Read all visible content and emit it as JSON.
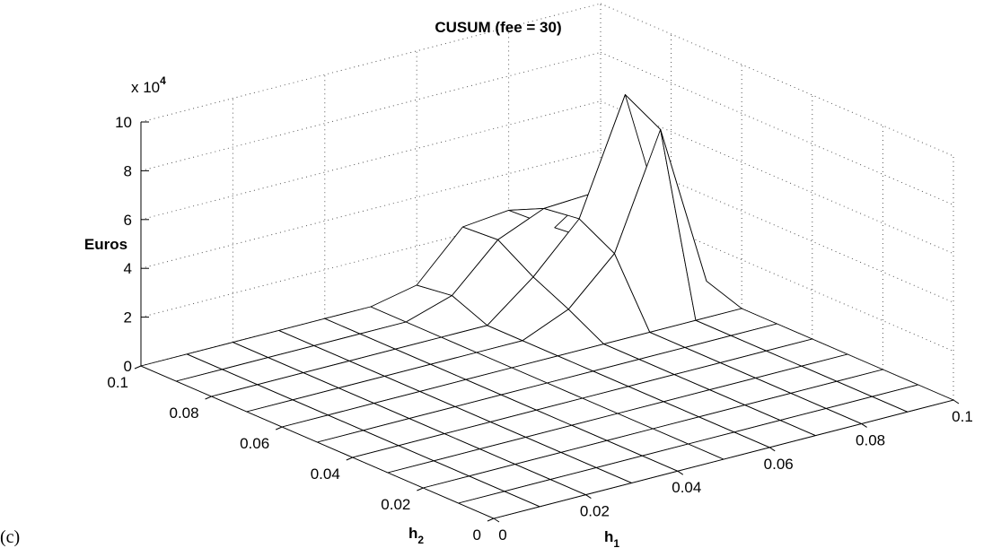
{
  "panel_label": "(c)",
  "chart_data": {
    "type": "surface",
    "title": "CUSUM (fee = 30)",
    "xlabel": "h",
    "xlabel_sub": "1",
    "ylabel": "h",
    "ylabel_sub": "2",
    "zlabel": "Euros",
    "z_multiplier": "x 10",
    "z_multiplier_exp": "4",
    "xlim": [
      0,
      0.1
    ],
    "ylim": [
      0,
      0.1
    ],
    "zlim": [
      0,
      10
    ],
    "grid": true,
    "x_ticks": [
      "0",
      "0.02",
      "0.04",
      "0.06",
      "0.08",
      "0.1"
    ],
    "y_ticks": [
      "0",
      "0.02",
      "0.04",
      "0.06",
      "0.08",
      "0.1"
    ],
    "z_ticks": [
      "0",
      "2",
      "4",
      "6",
      "8",
      "10"
    ],
    "x": [
      0,
      0.01,
      0.02,
      0.03,
      0.04,
      0.05,
      0.06,
      0.07,
      0.08,
      0.09,
      0.1
    ],
    "y": [
      0,
      0.01,
      0.02,
      0.03,
      0.04,
      0.05,
      0.06,
      0.07,
      0.08,
      0.09,
      0.1
    ],
    "z_note": "z values in units of 10^4 Euros; rows indexed by y (h2), columns by x (h1)",
    "z": [
      [
        0,
        0,
        0,
        0,
        0,
        0,
        0,
        0,
        0,
        0,
        0
      ],
      [
        0,
        0,
        0,
        0,
        0,
        0,
        0,
        0,
        0,
        0,
        0
      ],
      [
        0,
        0,
        0,
        0,
        0,
        0,
        0,
        0,
        0,
        0,
        0
      ],
      [
        0,
        0,
        0,
        0,
        0,
        0,
        0,
        0,
        0,
        0,
        0
      ],
      [
        0,
        0,
        0,
        0,
        0,
        0,
        0,
        0,
        0,
        0,
        0
      ],
      [
        0,
        0,
        0,
        0,
        0,
        0,
        0,
        0,
        0,
        0,
        0
      ],
      [
        0,
        0,
        0,
        0,
        0,
        0,
        0,
        0,
        0,
        0,
        0
      ],
      [
        0,
        0,
        0,
        0,
        0,
        0,
        0,
        0.8,
        2.6,
        7.2,
        0.5
      ],
      [
        0,
        0,
        0,
        0,
        0,
        0,
        0,
        1.5,
        3.4,
        8.0,
        1.2
      ],
      [
        0,
        0,
        0,
        0,
        0,
        0,
        0.6,
        2.4,
        3.2,
        3.3,
        0.3
      ],
      [
        0,
        0,
        0,
        0,
        0,
        0,
        0.4,
        2.3,
        2.5,
        1.3,
        0.2
      ]
    ]
  }
}
